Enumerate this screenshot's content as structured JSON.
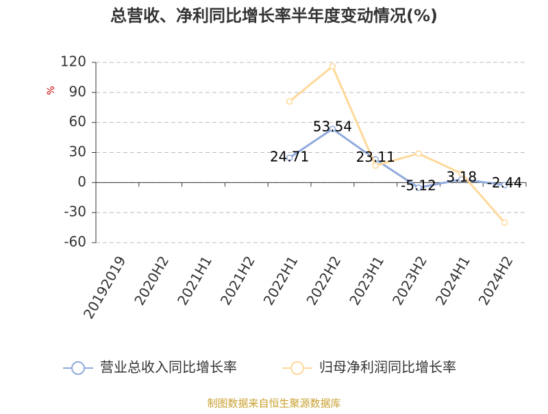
{
  "chart_data": {
    "type": "line",
    "title": "总营收、净利同比增长率半年度变动情况(%)",
    "y_label": "%",
    "categories": [
      "20192019",
      "2020H2",
      "2021H1",
      "2021H2",
      "2022H1",
      "2022H2",
      "2023H1",
      "2023H2",
      "2024H1",
      "2024H2"
    ],
    "series": [
      {
        "name": "营业总收入同比增长率",
        "color": "#8faadc",
        "values": [
          null,
          null,
          null,
          null,
          24.71,
          53.54,
          23.11,
          -5.12,
          3.18,
          -2.44
        ],
        "show_labels": true
      },
      {
        "name": "归母净利润同比增长率",
        "color": "#ffd899",
        "values": [
          null,
          null,
          null,
          null,
          81,
          116,
          17,
          29,
          9,
          -40
        ],
        "show_labels": false
      }
    ],
    "ylim": [
      -60,
      120
    ],
    "yticks": [
      -60,
      -30,
      0,
      30,
      60,
      90,
      120
    ],
    "grid": true,
    "source": "制图数据来自恒生聚源数据库"
  }
}
